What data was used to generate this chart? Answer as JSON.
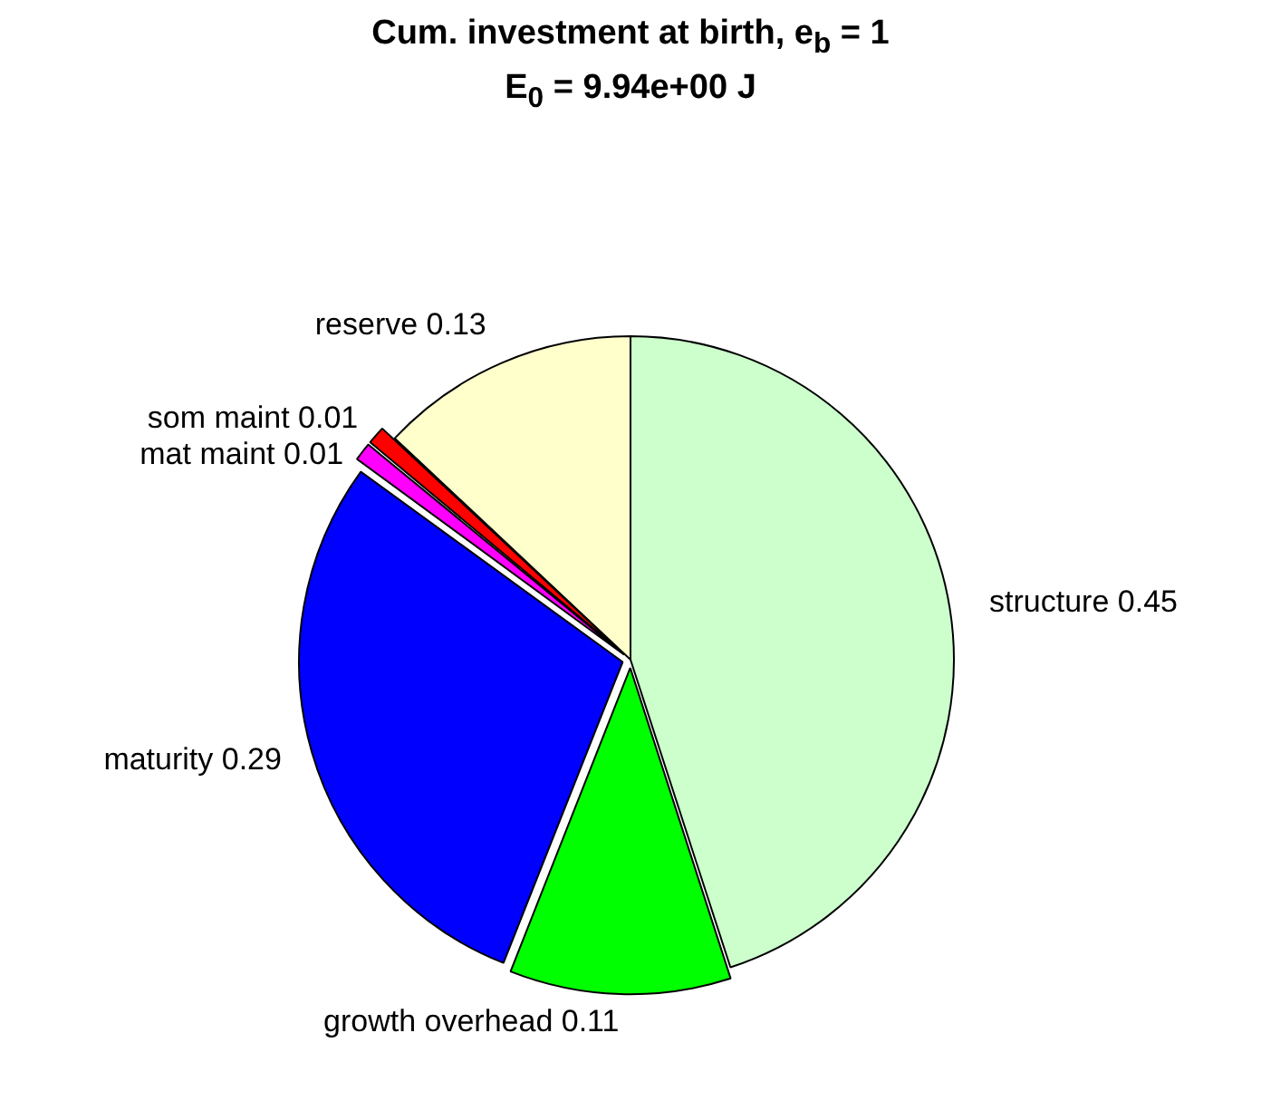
{
  "chart_data": {
    "type": "pie",
    "title": "Cum. investment at birth, e$_{b}$ = 1",
    "subtitle": "E$_{0}$ = 9.94e+00 J",
    "categories": [
      "structure",
      "growth overhead",
      "maturity",
      "mat maint",
      "som maint",
      "reserve"
    ],
    "values": [
      0.45,
      0.11,
      0.29,
      0.01,
      0.01,
      0.13
    ],
    "colors": [
      "#ccffcc",
      "#00ff00",
      "#0000ff",
      "#ff00ff",
      "#ff0000",
      "#ffffcc"
    ],
    "data_labels": true,
    "legend": false
  }
}
